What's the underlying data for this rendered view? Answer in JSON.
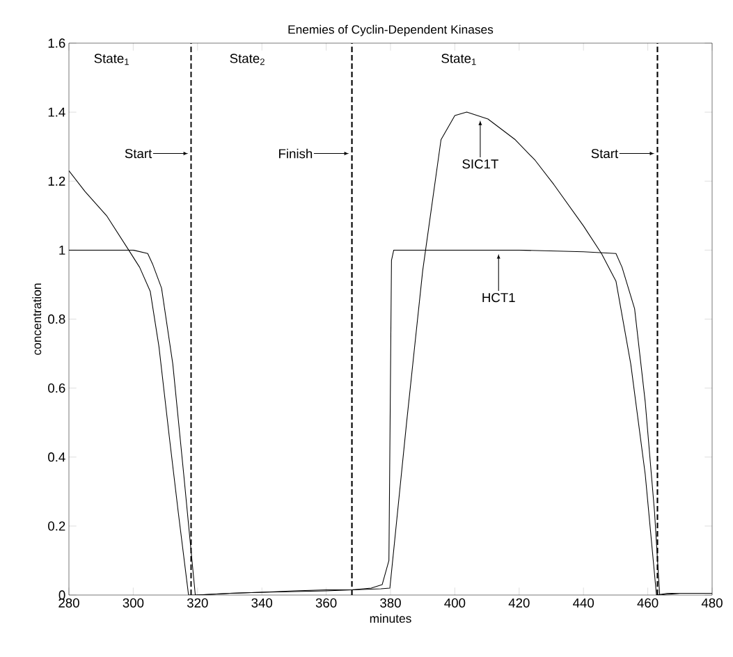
{
  "chart_data": {
    "type": "line",
    "title": "Enemies of Cyclin-Dependent Kinases",
    "xlabel": "minutes",
    "ylabel": "concentration",
    "xlim": [
      280,
      480
    ],
    "ylim": [
      0,
      1.6
    ],
    "xticks": [
      280,
      300,
      320,
      340,
      360,
      380,
      400,
      420,
      440,
      460,
      480
    ],
    "yticks": [
      0,
      0.2,
      0.4,
      0.6,
      0.8,
      1,
      1.2,
      1.4,
      1.6
    ],
    "grid": false,
    "line_style": "solid",
    "marker": "none",
    "series": [
      {
        "color": "#000000",
        "x": [
          280,
          285,
          291.7,
          298.6,
          302,
          305.3,
          308,
          311.2,
          314,
          317.2,
          320,
          330,
          340,
          350,
          360,
          368,
          374,
          377,
          379.8,
          385,
          390,
          395.7,
          400,
          403.7,
          410.3,
          418.8,
          425,
          430.8,
          440,
          445.6,
          450.1,
          454.7,
          459.2,
          462.7,
          466,
          470,
          480
        ],
        "values": [
          1.23,
          1.17,
          1.1,
          1.0,
          0.95,
          0.88,
          0.72,
          0.46,
          0.24,
          0,
          0,
          0.005,
          0.008,
          0.01,
          0.012,
          0.015,
          0.017,
          0.018,
          0.02,
          0.5,
          0.94,
          1.32,
          1.39,
          1.4,
          1.38,
          1.32,
          1.26,
          1.19,
          1.07,
          0.99,
          0.91,
          0.67,
          0.35,
          0,
          0.005,
          0.005,
          0.005
        ]
      },
      {
        "color": "#000000",
        "x": [
          280,
          290,
          300,
          304.5,
          306,
          308.8,
          312.3,
          315.7,
          319.3,
          330,
          340,
          350,
          360,
          368,
          374,
          377.4,
          379.5,
          380.3,
          381,
          400,
          420,
          440,
          450.1,
          452,
          455.9,
          459.2,
          462.1,
          463.7,
          470,
          480
        ],
        "values": [
          1,
          1,
          1,
          0.99,
          0.96,
          0.89,
          0.67,
          0.35,
          0,
          0.005,
          0.008,
          0.012,
          0.015,
          0.015,
          0.02,
          0.03,
          0.1,
          0.97,
          1,
          1,
          1,
          0.995,
          0.99,
          0.95,
          0.83,
          0.56,
          0.24,
          0,
          0.005,
          0.005
        ]
      }
    ],
    "ref_lines": [
      {
        "axis": "x",
        "value": 318,
        "line_style": "dashed",
        "color": "#000000"
      },
      {
        "axis": "x",
        "value": 368,
        "line_style": "dashed",
        "color": "#000000"
      },
      {
        "axis": "x",
        "value": 463,
        "line_style": "dashed",
        "color": "#000000"
      }
    ],
    "annotations": [
      "State$_{1}$",
      "State$_{2}$",
      "State$_{1}$",
      "Start",
      "Finish",
      "Start",
      "SIC1T",
      "HCT1"
    ]
  }
}
